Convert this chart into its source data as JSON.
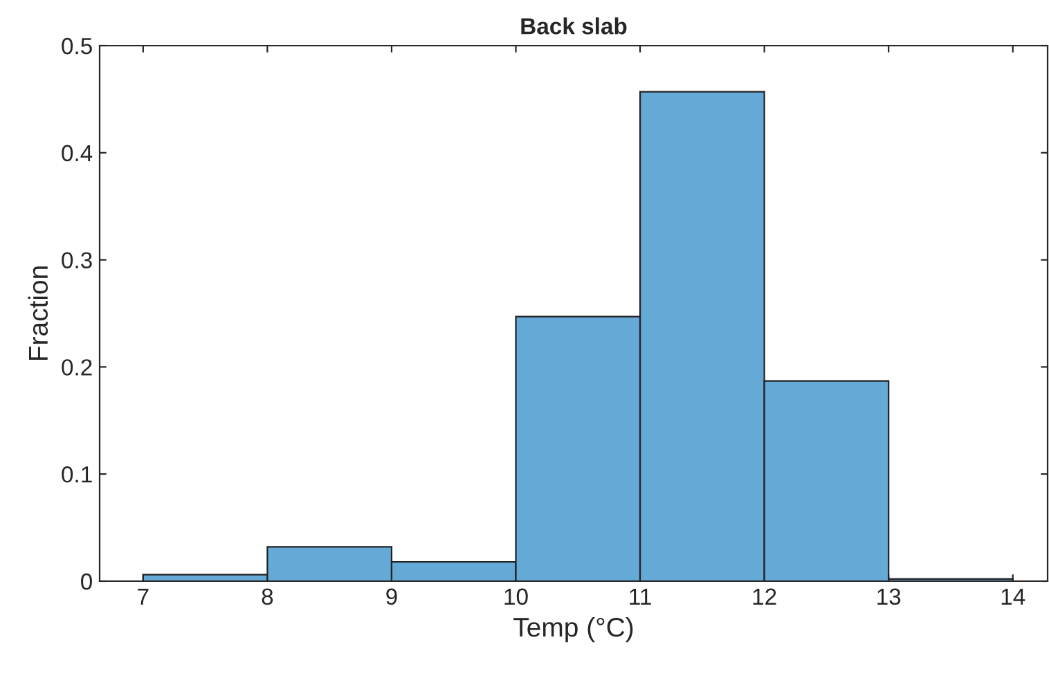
{
  "chart_data": {
    "type": "histogram",
    "title": "Back slab",
    "xlabel": "Temp (°C)",
    "ylabel": "Fraction",
    "bins": [
      7,
      8,
      9,
      10,
      11,
      12,
      13,
      14
    ],
    "values": [
      0.006,
      0.032,
      0.018,
      0.247,
      0.457,
      0.187,
      0.002
    ],
    "color": "#65a9d7",
    "xlim": [
      6.65,
      14.28
    ],
    "ylim": [
      0,
      0.5
    ],
    "xticks": [
      7,
      8,
      9,
      10,
      11,
      12,
      13,
      14
    ],
    "yticks": [
      0,
      0.1,
      0.2,
      0.3,
      0.4,
      0.5
    ],
    "grid": false
  }
}
